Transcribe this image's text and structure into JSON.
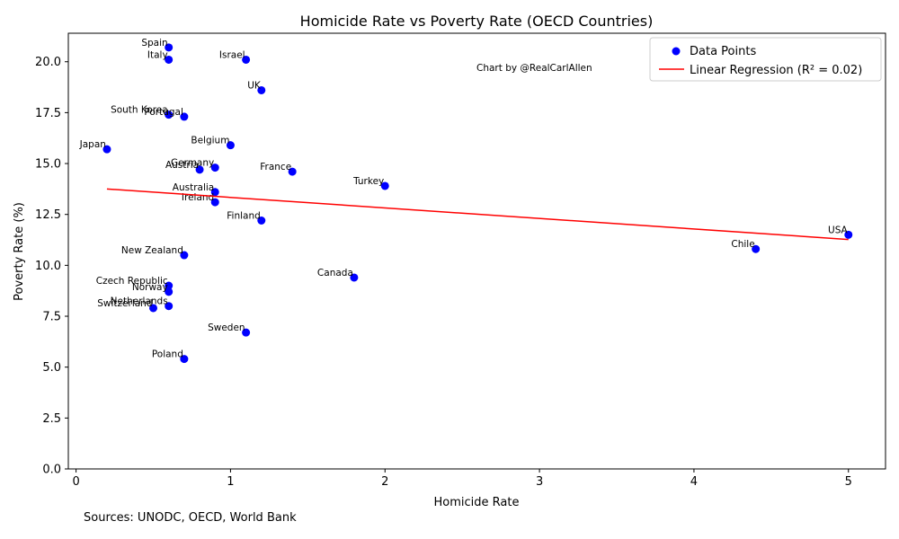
{
  "chart_data": {
    "type": "scatter",
    "title": "Homicide Rate vs Poverty Rate (OECD Countries)",
    "xlabel": "Homicide Rate",
    "ylabel": "Poverty Rate (%)",
    "xlim": [
      -0.05,
      5.24
    ],
    "ylim": [
      0,
      21.4
    ],
    "xticks": [
      0,
      1,
      2,
      3,
      4,
      5
    ],
    "xtick_labels": [
      "0",
      "1",
      "2",
      "3",
      "4",
      "5"
    ],
    "yticks": [
      0,
      2.5,
      5,
      7.5,
      10,
      12.5,
      15,
      17.5,
      20
    ],
    "ytick_labels": [
      "0.0",
      "2.5",
      "5.0",
      "7.5",
      "10.0",
      "12.5",
      "15.0",
      "17.5",
      "20.0"
    ],
    "grid": false,
    "legend_position": "top-right",
    "points": [
      {
        "label": "Spain",
        "x": 0.6,
        "y": 20.7
      },
      {
        "label": "Italy",
        "x": 0.6,
        "y": 20.1
      },
      {
        "label": "Israel",
        "x": 1.1,
        "y": 20.1
      },
      {
        "label": "UK",
        "x": 1.2,
        "y": 18.6
      },
      {
        "label": "South Korea",
        "x": 0.6,
        "y": 17.4
      },
      {
        "label": "Portugal",
        "x": 0.7,
        "y": 17.3
      },
      {
        "label": "Belgium",
        "x": 1.0,
        "y": 15.9
      },
      {
        "label": "Japan",
        "x": 0.2,
        "y": 15.7
      },
      {
        "label": "Germany",
        "x": 0.9,
        "y": 14.8
      },
      {
        "label": "Austria",
        "x": 0.8,
        "y": 14.7
      },
      {
        "label": "France",
        "x": 1.4,
        "y": 14.6
      },
      {
        "label": "Turkey",
        "x": 2.0,
        "y": 13.9
      },
      {
        "label": "Australia",
        "x": 0.9,
        "y": 13.6
      },
      {
        "label": "Ireland",
        "x": 0.9,
        "y": 13.1
      },
      {
        "label": "Finland",
        "x": 1.2,
        "y": 12.2
      },
      {
        "label": "USA",
        "x": 5.0,
        "y": 11.5
      },
      {
        "label": "Chile",
        "x": 4.4,
        "y": 10.8
      },
      {
        "label": "New Zealand",
        "x": 0.7,
        "y": 10.5
      },
      {
        "label": "Canada",
        "x": 1.8,
        "y": 9.4
      },
      {
        "label": "Czech Republic",
        "x": 0.6,
        "y": 9.0
      },
      {
        "label": "Norway",
        "x": 0.6,
        "y": 8.7
      },
      {
        "label": "Netherlands",
        "x": 0.6,
        "y": 8.0
      },
      {
        "label": "Switzerland",
        "x": 0.5,
        "y": 7.9
      },
      {
        "label": "Sweden",
        "x": 1.1,
        "y": 6.7
      },
      {
        "label": "Poland",
        "x": 0.7,
        "y": 5.4
      }
    ],
    "regression": {
      "x": [
        0.2,
        5.0
      ],
      "y": [
        13.75,
        11.27
      ]
    },
    "legend": [
      "Data Points",
      "Linear Regression (R² = 0.02)"
    ],
    "annotation": "Chart by @RealCarlAllen",
    "colors": {
      "points": "#0000ff",
      "regression": "#ff0000"
    }
  },
  "footer": {
    "source": "Sources: UNODC, OECD, World Bank"
  }
}
